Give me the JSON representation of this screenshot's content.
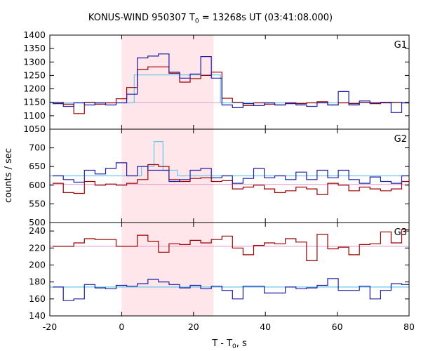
{
  "title": {
    "pre": "KONUS-WIND 950307 T",
    "sub": "0",
    "post": " = 13268s UT (03:41:08.000)"
  },
  "x_label": {
    "pre": "T - T",
    "sub": "0",
    "post": ", s"
  },
  "y_label": "counts / sec",
  "colors": {
    "series_red": "#9b0000",
    "series_blue": "#1c1ca6",
    "step_cyan": "#66c8ee",
    "baseline_pink": "#e898cc",
    "interval_fill": "#ffe6ea"
  },
  "chart_data": {
    "type": "line",
    "grid": false,
    "x_range": [
      -20,
      80
    ],
    "x_ticks": [
      -20,
      0,
      20,
      40,
      60,
      80
    ],
    "highlight_interval": [
      0,
      25.6
    ],
    "bin_start": -19.2,
    "bin_width": 2.944,
    "panels": [
      {
        "name": "G1",
        "ylim": [
          1050,
          1400
        ],
        "y_ticks": [
          1050,
          1100,
          1150,
          1200,
          1250,
          1300,
          1350,
          1400
        ],
        "series": [
          {
            "values": [
              1150,
              1143,
              1108,
              1150,
              1143,
              1148,
              1163,
              1205,
              1272,
              1282,
              1282,
              1258,
              1225,
              1238,
              1250,
              1262,
              1165,
              1150,
              1138,
              1148,
              1143,
              1140,
              1148,
              1145,
              1148,
              1152,
              1140,
              1148,
              1145,
              1150,
              1145,
              1148,
              1150,
              1148
            ]
          },
          {
            "values": [
              1145,
              1135,
              1148,
              1140,
              1148,
              1140,
              1148,
              1180,
              1315,
              1322,
              1330,
              1262,
              1240,
              1255,
              1320,
              1240,
              1140,
              1130,
              1145,
              1138,
              1148,
              1140,
              1145,
              1140,
              1135,
              1148,
              1140,
              1190,
              1140,
              1155,
              1148,
              1150,
              1112,
              1148
            ]
          }
        ],
        "baseline": 1148,
        "step_model": [
          {
            "x": [
              -20,
              3.5
            ],
            "y": 1148
          },
          {
            "x": [
              3.5,
              27.5
            ],
            "y": 1252
          },
          {
            "x": [
              27.5,
              80
            ],
            "y": 1148
          }
        ]
      },
      {
        "name": "G2",
        "ylim": [
          500,
          750
        ],
        "y_ticks": [
          500,
          550,
          600,
          650,
          700
        ],
        "series": [
          {
            "values": [
              605,
              580,
              578,
              610,
              600,
              603,
              600,
              605,
              615,
              655,
              650,
              615,
              610,
              618,
              620,
              610,
              612,
              590,
              595,
              600,
              590,
              580,
              585,
              595,
              590,
              575,
              605,
              600,
              585,
              595,
              590,
              585,
              590,
              610
            ]
          },
          {
            "values": [
              625,
              615,
              608,
              640,
              630,
              645,
              660,
              625,
              650,
              640,
              640,
              610,
              615,
              640,
              645,
              620,
              625,
              605,
              618,
              645,
              620,
              625,
              615,
              635,
              615,
              640,
              620,
              640,
              615,
              605,
              622,
              610,
              605,
              625
            ]
          }
        ],
        "baseline": 602,
        "step_model": [
          {
            "x": [
              -20,
              5.5
            ],
            "y": 625
          },
          {
            "x": [
              5.5,
              9
            ],
            "y": 650
          },
          {
            "x": [
              9,
              11.5
            ],
            "y": 717
          },
          {
            "x": [
              11.5,
              15.5
            ],
            "y": 640
          },
          {
            "x": [
              15.5,
              80
            ],
            "y": 625
          }
        ]
      },
      {
        "name": "G3",
        "ylim": [
          140,
          250
        ],
        "y_ticks": [
          140,
          160,
          180,
          200,
          220,
          240
        ],
        "series": [
          {
            "values": [
              222,
              222,
              226,
              231,
              230,
              230,
              222,
              222,
              235,
              228,
              215,
              225,
              224,
              229,
              226,
              230,
              234,
              220,
              212,
              223,
              226,
              225,
              231,
              227,
              205,
              236,
              219,
              221,
              212,
              224,
              225,
              239,
              226,
              242
            ]
          },
          {
            "values": [
              174,
              158,
              160,
              177,
              173,
              172,
              176,
              175,
              178,
              183,
              180,
              177,
              173,
              176,
              172,
              175,
              170,
              160,
              175,
              175,
              167,
              167,
              174,
              172,
              173,
              176,
              184,
              170,
              170,
              175,
              160,
              170,
              178,
              177
            ]
          }
        ],
        "baseline": 222,
        "step_model": [
          {
            "x": [
              -20,
              80
            ],
            "y": 174
          }
        ]
      }
    ]
  }
}
